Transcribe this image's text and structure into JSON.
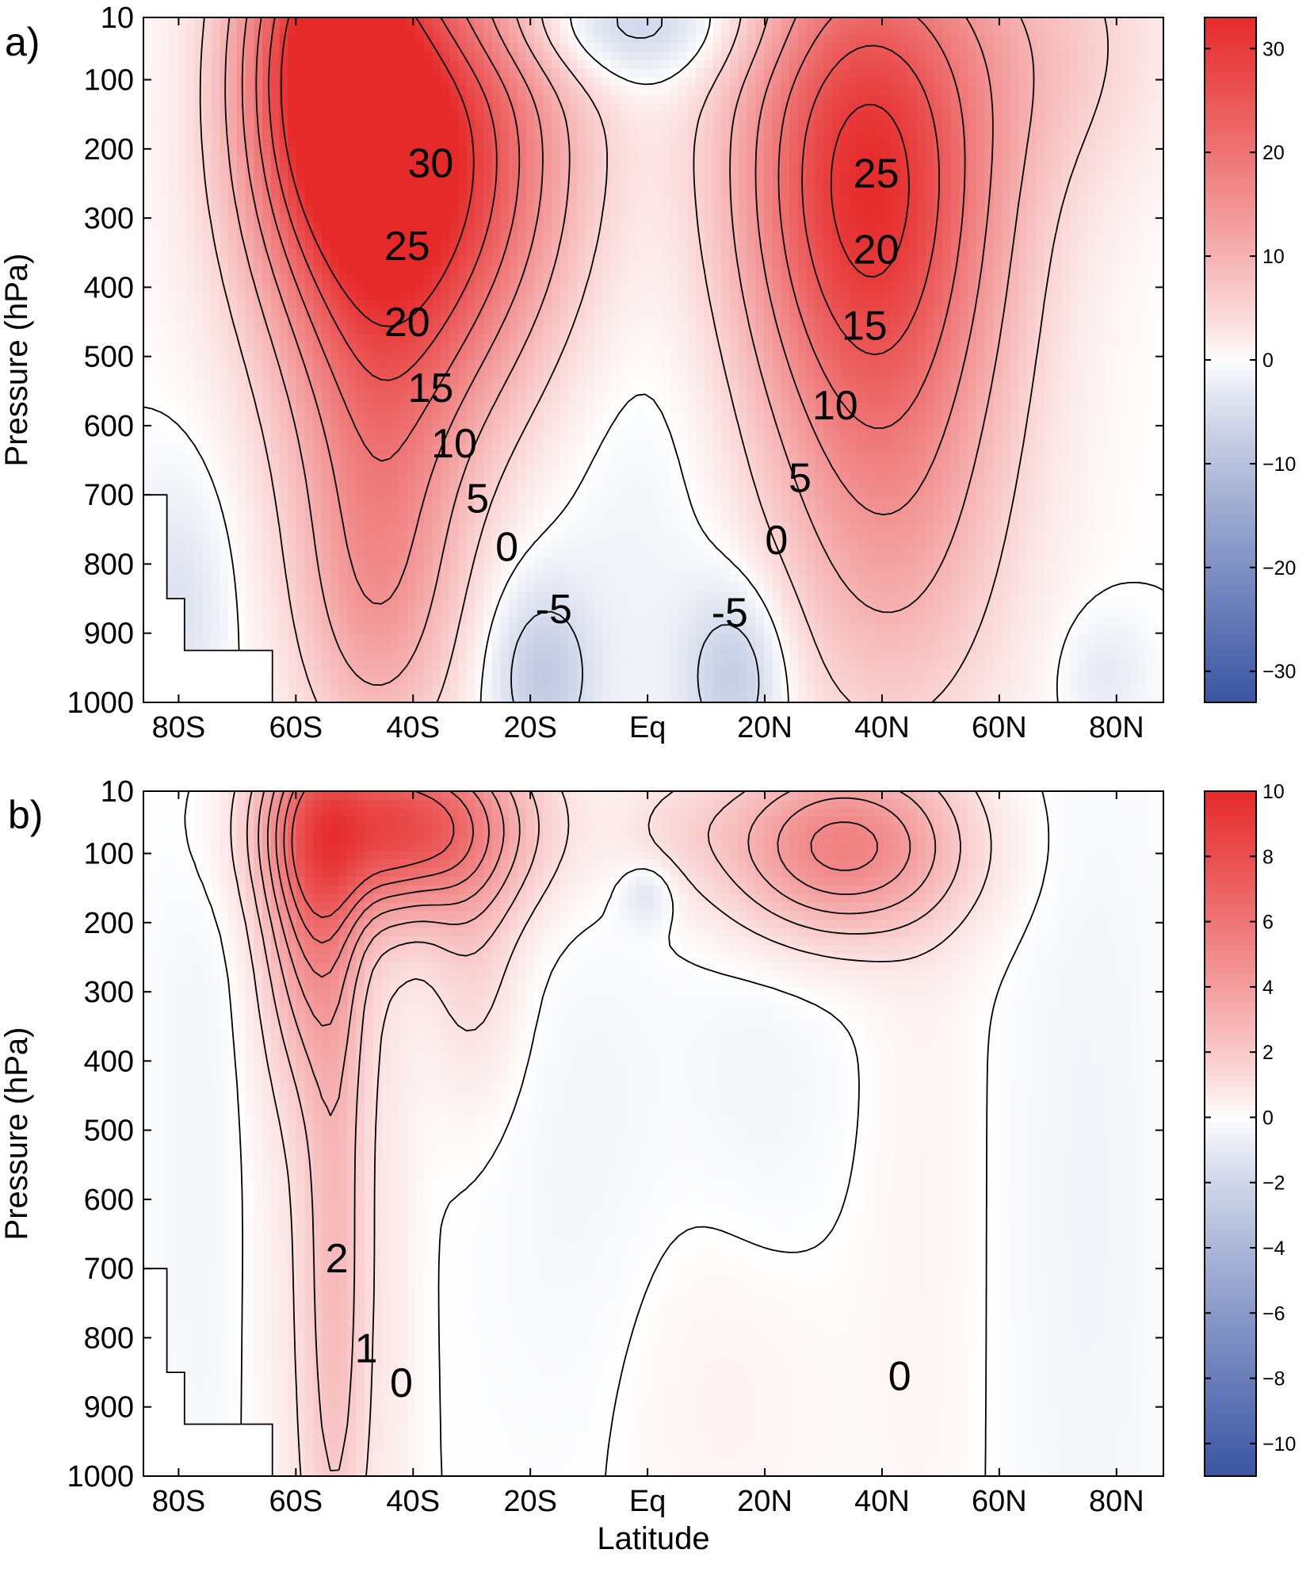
{
  "chart_data": [
    {
      "type": "heatmap",
      "panel_label": "a)",
      "ylabel": "Pressure (hPa)",
      "xlabel": "",
      "x_ticks": [
        "80S",
        "60S",
        "40S",
        "20S",
        "Eq",
        "20N",
        "40N",
        "60N",
        "80N"
      ],
      "x_tick_values": [
        -80,
        -60,
        -40,
        -20,
        0,
        20,
        40,
        60,
        80
      ],
      "y_ticks": [
        "10",
        "100",
        "200",
        "300",
        "400",
        "500",
        "600",
        "700",
        "800",
        "900",
        "1000"
      ],
      "y_tick_values": [
        10,
        100,
        200,
        300,
        400,
        500,
        600,
        700,
        800,
        900,
        1000
      ],
      "xlim": [
        -86,
        88
      ],
      "ylim": [
        10,
        1000
      ],
      "colorbar": {
        "ticks": [
          "30",
          "20",
          "10",
          "0",
          "−10",
          "−20",
          "−30"
        ],
        "tick_values": [
          30,
          20,
          10,
          0,
          -10,
          -20,
          -30
        ],
        "range": [
          -33,
          33
        ],
        "colors": {
          "negative": "#3a55a4",
          "zero": "#ffffff",
          "positive": "#e62a2a"
        }
      },
      "contour_labels": [
        {
          "text": "30",
          "lat": -37,
          "p": 225
        },
        {
          "text": "25",
          "lat": -41,
          "p": 345
        },
        {
          "text": "20",
          "lat": -41,
          "p": 455
        },
        {
          "text": "15",
          "lat": -37,
          "p": 550
        },
        {
          "text": "10",
          "lat": -33,
          "p": 630
        },
        {
          "text": "5",
          "lat": -29,
          "p": 710
        },
        {
          "text": "0",
          "lat": -24,
          "p": 780
        },
        {
          "text": "-5",
          "lat": -16,
          "p": 870
        },
        {
          "text": "-5",
          "lat": 14,
          "p": 875
        },
        {
          "text": "0",
          "lat": 22,
          "p": 770
        },
        {
          "text": "5",
          "lat": 26,
          "p": 680
        },
        {
          "text": "10",
          "lat": 32,
          "p": 575
        },
        {
          "text": "15",
          "lat": 37,
          "p": 460
        },
        {
          "text": "20",
          "lat": 39,
          "p": 350
        },
        {
          "text": "25",
          "lat": 39,
          "p": 240
        }
      ],
      "features": [
        {
          "lat": -38,
          "p": 210,
          "value": 32,
          "sx": 17,
          "sy": 240
        },
        {
          "lat": -55,
          "p": 60,
          "value": 26,
          "sx": 10,
          "sy": 200
        },
        {
          "lat": -46,
          "p": 600,
          "value": 12,
          "sx": 11,
          "sy": 260
        },
        {
          "lat": -46,
          "p": 870,
          "value": 7,
          "sx": 9,
          "sy": 160
        },
        {
          "lat": 37,
          "p": 200,
          "value": 28,
          "sx": 16,
          "sy": 250
        },
        {
          "lat": 40,
          "p": 560,
          "value": 11,
          "sx": 15,
          "sy": 260
        },
        {
          "lat": 42,
          "p": 850,
          "value": 4,
          "sx": 13,
          "sy": 200
        },
        {
          "lat": 70,
          "p": 40,
          "value": 5,
          "sx": 14,
          "sy": 150
        },
        {
          "lat": 0,
          "p": 450,
          "value": -2,
          "sx": 18,
          "sy": 500
        },
        {
          "lat": -5,
          "p": 20,
          "value": -8,
          "sx": 16,
          "sy": 60
        },
        {
          "lat": -18,
          "p": 960,
          "value": -8,
          "sx": 6,
          "sy": 90
        },
        {
          "lat": 15,
          "p": 960,
          "value": -8,
          "sx": 6,
          "sy": 90
        },
        {
          "lat": -80,
          "p": 860,
          "value": -4,
          "sx": 6,
          "sy": 130
        },
        {
          "lat": 78,
          "p": 960,
          "value": -3,
          "sx": 5,
          "sy": 60
        }
      ],
      "contour_levels": [
        -5,
        0,
        5,
        10,
        15,
        20,
        25,
        30
      ],
      "topography_mask": [
        {
          "lat": -86,
          "p": 700
        },
        {
          "lat": -82,
          "p": 700
        },
        {
          "lat": -82,
          "p": 850
        },
        {
          "lat": -79,
          "p": 850
        },
        {
          "lat": -79,
          "p": 925
        },
        {
          "lat": -64,
          "p": 925
        },
        {
          "lat": -64,
          "p": 1000
        },
        {
          "lat": -86,
          "p": 1000
        }
      ]
    },
    {
      "type": "heatmap",
      "panel_label": "b)",
      "ylabel": "Pressure (hPa)",
      "xlabel": "Latitude",
      "x_ticks": [
        "80S",
        "60S",
        "40S",
        "20S",
        "Eq",
        "20N",
        "40N",
        "60N",
        "80N"
      ],
      "x_tick_values": [
        -80,
        -60,
        -40,
        -20,
        0,
        20,
        40,
        60,
        80
      ],
      "y_ticks": [
        "10",
        "100",
        "200",
        "300",
        "400",
        "500",
        "600",
        "700",
        "800",
        "900",
        "1000"
      ],
      "y_tick_values": [
        10,
        100,
        200,
        300,
        400,
        500,
        600,
        700,
        800,
        900,
        1000
      ],
      "xlim": [
        -86,
        88
      ],
      "ylim": [
        10,
        1000
      ],
      "colorbar": {
        "ticks": [
          "10",
          "8",
          "6",
          "4",
          "2",
          "0",
          "−2",
          "−4",
          "−6",
          "−8",
          "−10"
        ],
        "tick_values": [
          10,
          8,
          6,
          4,
          2,
          0,
          -2,
          -4,
          -6,
          -8,
          -10
        ],
        "range": [
          -11,
          10
        ],
        "colors": {
          "negative": "#3a55a4",
          "zero": "#ffffff",
          "positive": "#e62a2a"
        }
      },
      "contour_labels": [
        {
          "text": "2",
          "lat": -53,
          "p": 690
        },
        {
          "text": "1",
          "lat": -48,
          "p": 820
        },
        {
          "text": "0",
          "lat": -42,
          "p": 870
        },
        {
          "text": "0",
          "lat": 43,
          "p": 860
        }
      ],
      "features": [
        {
          "lat": -42,
          "p": 60,
          "value": 8,
          "sx": 14,
          "sy": 90
        },
        {
          "lat": -57,
          "p": 150,
          "value": 4.5,
          "sx": 6,
          "sy": 180
        },
        {
          "lat": -53,
          "p": 700,
          "value": 2.3,
          "sx": 4,
          "sy": 380
        },
        {
          "lat": -30,
          "p": 250,
          "value": 1.4,
          "sx": 6,
          "sy": 140
        },
        {
          "lat": 33,
          "p": 90,
          "value": 5.4,
          "sx": 14,
          "sy": 90
        },
        {
          "lat": 5,
          "p": 60,
          "value": 0.8,
          "sx": 8,
          "sy": 60
        },
        {
          "lat": -43,
          "p": 700,
          "value": 0.5,
          "sx": 3,
          "sy": 500
        },
        {
          "lat": -60,
          "p": 700,
          "value": 0.6,
          "sx": 7,
          "sy": 500
        },
        {
          "lat": 10,
          "p": 850,
          "value": 0.4,
          "sx": 16,
          "sy": 220
        },
        {
          "lat": 47,
          "p": 500,
          "value": 0.3,
          "sx": 7,
          "sy": 600
        },
        {
          "lat": 0,
          "p": 160,
          "value": -1.4,
          "sx": 3,
          "sy": 30
        },
        {
          "lat": -10,
          "p": 600,
          "value": -0.4,
          "sx": 12,
          "sy": 320
        },
        {
          "lat": 20,
          "p": 450,
          "value": -0.4,
          "sx": 10,
          "sy": 200
        },
        {
          "lat": -75,
          "p": 500,
          "value": -0.4,
          "sx": 7,
          "sy": 600
        },
        {
          "lat": 75,
          "p": 600,
          "value": -0.4,
          "sx": 10,
          "sy": 600
        }
      ],
      "contour_levels": [
        0,
        1,
        2,
        3,
        4,
        5,
        6,
        7
      ],
      "topography_mask": [
        {
          "lat": -86,
          "p": 700
        },
        {
          "lat": -82,
          "p": 700
        },
        {
          "lat": -82,
          "p": 850
        },
        {
          "lat": -79,
          "p": 850
        },
        {
          "lat": -79,
          "p": 925
        },
        {
          "lat": -64,
          "p": 925
        },
        {
          "lat": -64,
          "p": 1000
        },
        {
          "lat": -86,
          "p": 1000
        }
      ]
    }
  ]
}
